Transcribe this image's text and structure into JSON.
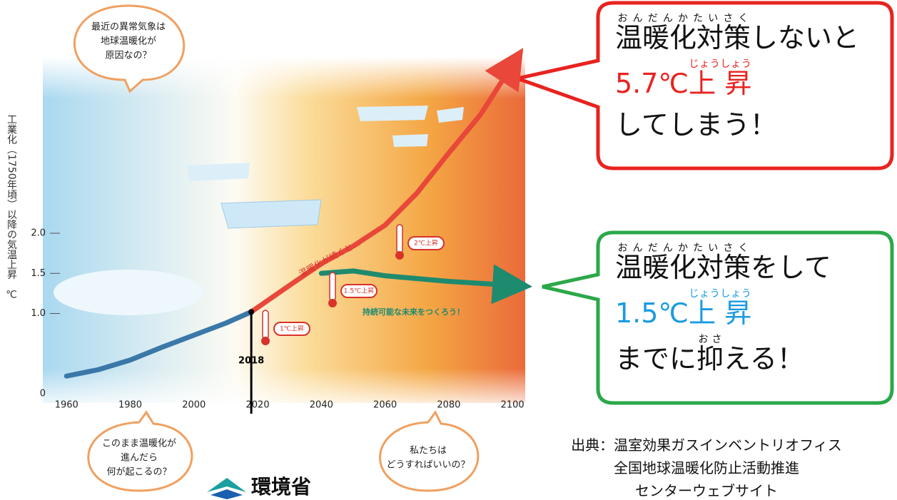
{
  "chart_data": {
    "type": "line",
    "y_label": "工業化（1750年頃）以降の気温上昇　℃",
    "xlim": [
      1953,
      2104
    ],
    "xticks": [
      1960,
      1980,
      2000,
      2020,
      2040,
      2060,
      2080,
      2100
    ],
    "ylim": [
      0,
      4.2
    ],
    "yticks": [
      0,
      {
        "value": 1,
        "label": "1.0"
      },
      1.5,
      {
        "value": 2,
        "label": "2.0"
      }
    ],
    "series": [
      {
        "color": "#3a78a8",
        "x": [
          1960,
          1970,
          1980,
          1990,
          2000,
          2010,
          2018
        ],
        "values": [
          0.22,
          0.3,
          0.42,
          0.58,
          0.73,
          0.88,
          1.02
        ]
      },
      {
        "color": "#e8473a",
        "x": [
          2018,
          2030,
          2040,
          2050,
          2060,
          2070,
          2080,
          2090,
          2100
        ],
        "values": [
          1.02,
          1.35,
          1.62,
          1.84,
          2.1,
          2.5,
          3.0,
          3.48,
          4.1
        ]
      },
      {
        "color": "#1e8a6e",
        "x": [
          2040,
          2050,
          2060,
          2080,
          2100
        ],
        "values": [
          1.5,
          1.53,
          1.47,
          1.4,
          1.35
        ]
      }
    ],
    "marker_year": 2018,
    "annotations": [
      "温暖化が続くと…",
      "持続可能な未来をつくろう！",
      "1℃上昇",
      "1.5℃上昇",
      "2℃上昇"
    ]
  },
  "bubbles": [
    [
      "最近の異常気象は",
      "地球温暖化が",
      "原因なの？"
    ],
    [
      "このまま温暖化が",
      "進んだら",
      "何が起こるの？"
    ],
    [
      "私たちは",
      "どうすればいいの？"
    ]
  ],
  "callouts": [
    {
      "ruby1": "おんだんかたいさく",
      "base1": "温暖化対策",
      "tail1": "しないと",
      "head2": "5.7℃",
      "base2": "上 昇",
      "ruby2": "じょうしょう",
      "line3": "してしまう！"
    },
    {
      "ruby1": "おんだんかたいさく",
      "base1": "温暖化対策",
      "tail1": "をして",
      "head2": "1.5℃",
      "base2": "上 昇",
      "ruby2": "じょうしょう",
      "head3": "までに",
      "base3": "抑",
      "ruby3": "おさ",
      "tail3": "える！"
    }
  ],
  "source": [
    "出典：温室効果ガスインベントリオフィス",
    "全国地球温暖化防止活動推進",
    "センターウェブサイト"
  ],
  "logo": "環境省"
}
